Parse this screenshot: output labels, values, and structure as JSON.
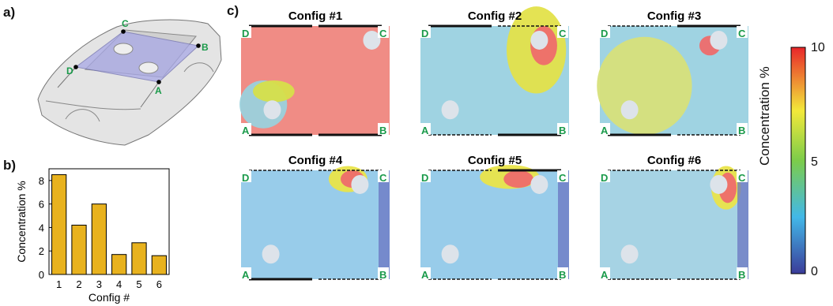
{
  "panels": {
    "a": "a)",
    "b": "b)",
    "c": "c)"
  },
  "car_corner_labels": [
    "A",
    "B",
    "C",
    "D"
  ],
  "chart_data": [
    {
      "type": "bar",
      "categories": [
        "1",
        "2",
        "3",
        "4",
        "5",
        "6"
      ],
      "values": [
        8.5,
        4.2,
        6.0,
        1.7,
        2.7,
        1.6
      ],
      "xlabel": "Config #",
      "ylabel": "Concentration %",
      "ylim": [
        0,
        9
      ],
      "yticks": [
        "0",
        "2",
        "4",
        "6",
        "8"
      ],
      "bar_color": "#e8b21e"
    },
    {
      "type": "heatmap",
      "colorbar": {
        "title": "Concentration %",
        "min": "0",
        "mid": "5",
        "max": "10"
      },
      "corner_labels": [
        "A",
        "B",
        "C",
        "D"
      ],
      "maps": [
        {
          "title": "Config #1"
        },
        {
          "title": "Config #2"
        },
        {
          "title": "Config #3"
        },
        {
          "title": "Config #4"
        },
        {
          "title": "Config #5"
        },
        {
          "title": "Config #6"
        }
      ]
    }
  ]
}
